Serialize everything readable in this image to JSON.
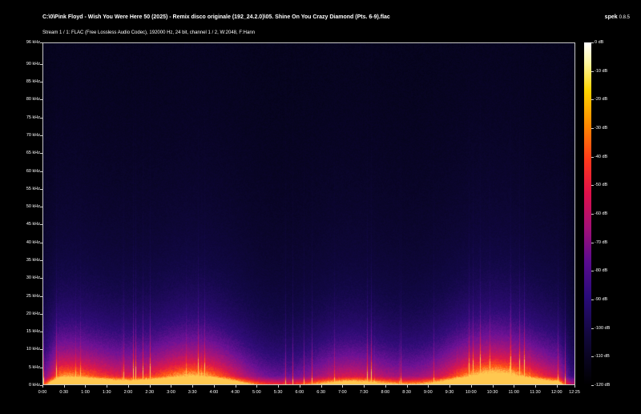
{
  "header": {
    "title": "C:\\0\\Pink Floyd - Wish You Were Here 50 (2025) - Remix disco originale (192_24.2.0)\\05. Shine On You Crazy Diamond (Pts. 6-9).flac",
    "app_name": "spek",
    "app_version": "0.8.5",
    "stream_info": "Stream 1 / 1: FLAC (Free Lossless Audio Codec), 192000 Hz, 24 bit, channel 1 / 2, W:2048, F:Hann"
  },
  "freq_axis": {
    "labels": [
      "96 kHz",
      "90 kHz",
      "85 kHz",
      "80 kHz",
      "75 kHz",
      "70 kHz",
      "65 kHz",
      "60 kHz",
      "55 kHz",
      "50 kHz",
      "45 kHz",
      "40 kHz",
      "35 kHz",
      "30 kHz",
      "25 kHz",
      "20 kHz",
      "15 kHz",
      "10 kHz",
      "5 kHz",
      "0 kHz"
    ],
    "values": [
      96,
      90,
      85,
      80,
      75,
      70,
      65,
      60,
      55,
      50,
      45,
      40,
      35,
      30,
      25,
      20,
      15,
      10,
      5,
      0
    ],
    "max": 96
  },
  "time_axis": {
    "labels": [
      "0:00",
      "0:30",
      "1:00",
      "1:30",
      "2:00",
      "2:30",
      "3:00",
      "3:30",
      "4:00",
      "4:30",
      "5:00",
      "5:30",
      "6:00",
      "6:30",
      "7:00",
      "7:30",
      "8:00",
      "8:30",
      "9:00",
      "9:30",
      "10:00",
      "10:30",
      "11:00",
      "11:30",
      "12:00",
      "12:25"
    ],
    "seconds": [
      0,
      30,
      60,
      90,
      120,
      150,
      180,
      210,
      240,
      270,
      300,
      330,
      360,
      390,
      420,
      450,
      480,
      510,
      540,
      570,
      600,
      630,
      660,
      690,
      720,
      745
    ],
    "duration_seconds": 745
  },
  "db_scale": {
    "labels": [
      "0 dB",
      "-10 dB",
      "-20 dB",
      "-30 dB",
      "-40 dB",
      "-50 dB",
      "-60 dB",
      "-70 dB",
      "-80 dB",
      "-90 dB",
      "-100 dB",
      "-110 dB",
      "-120 dB"
    ],
    "values": [
      0,
      -10,
      -20,
      -30,
      -40,
      -50,
      -60,
      -70,
      -80,
      -90,
      -100,
      -110,
      -120
    ]
  },
  "colors": {
    "background": "#000000",
    "spectrogram_floor": "#05041a",
    "spectrogram_low": "#1a0a5c",
    "spectrogram_mid": "#7a1196",
    "spectrogram_high": "#e0104a",
    "spectrogram_peak": "#ff5a12"
  }
}
